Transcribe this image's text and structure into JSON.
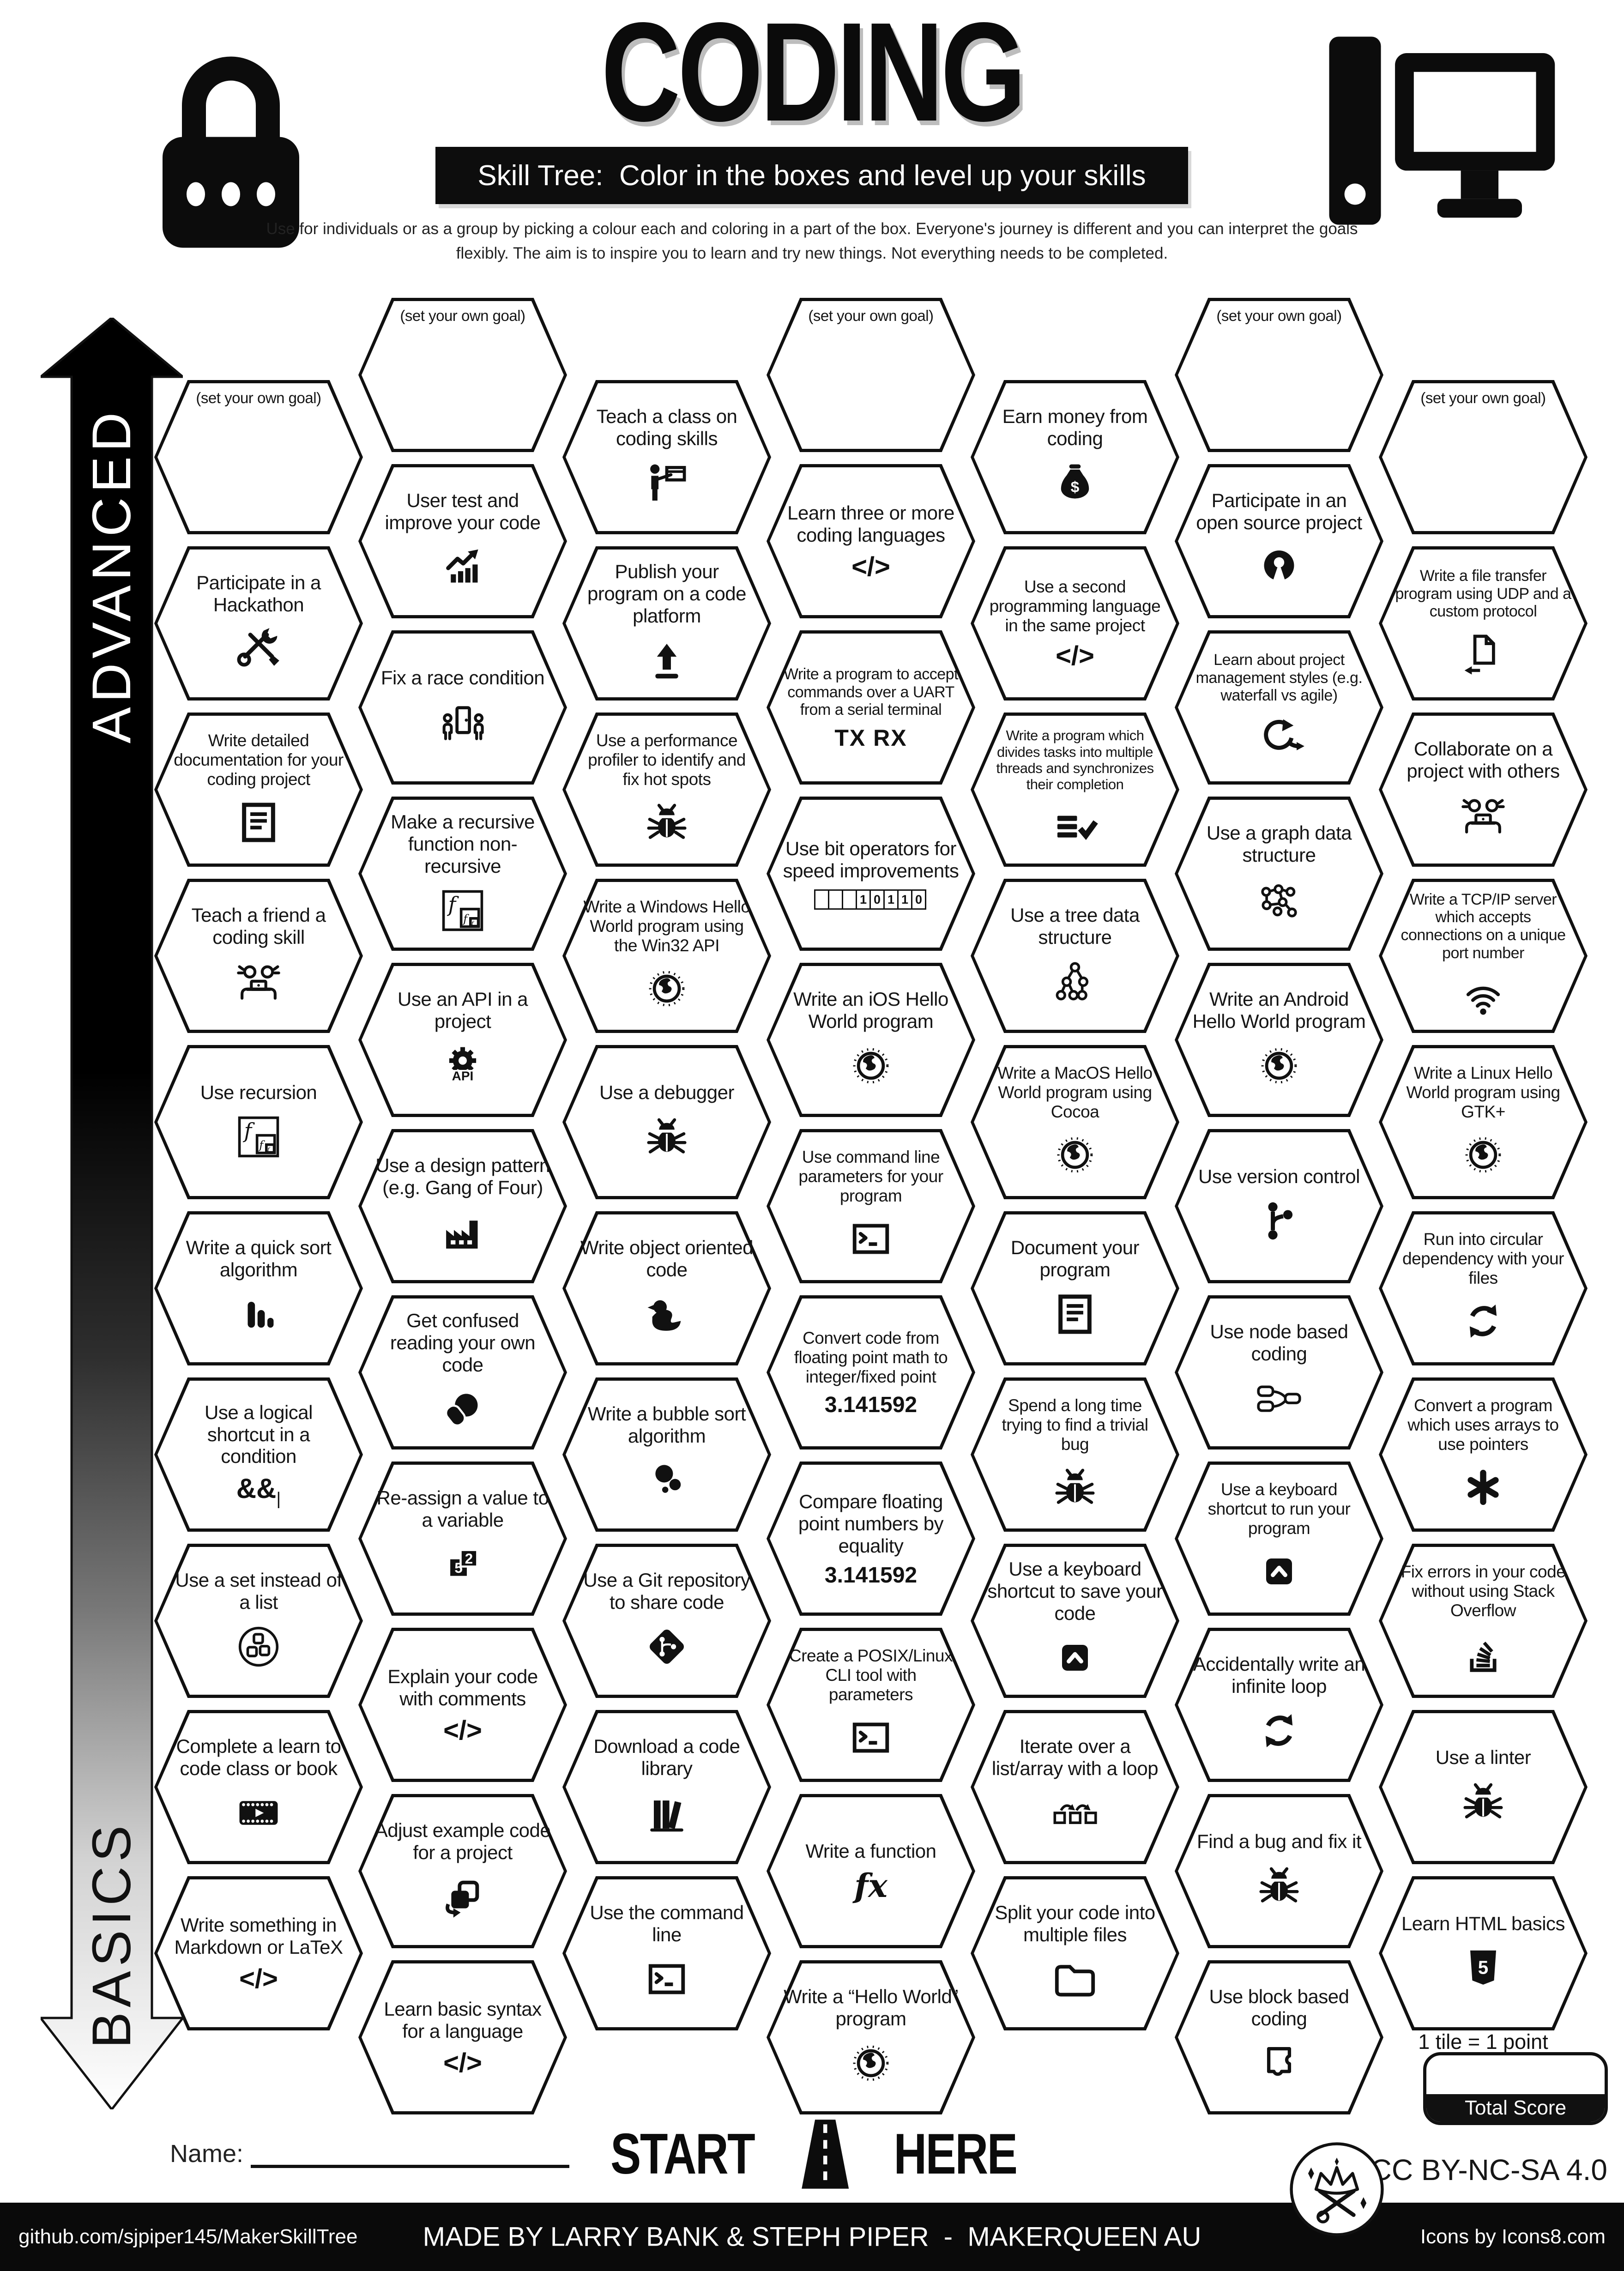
{
  "header": {
    "title": "CODING",
    "subtitle": "Skill Tree:  Color in the boxes and level up your skills",
    "description": "Use for individuals or as a group by picking a colour each and coloring in a part of the box.  Everyone's journey is different and you can interpret the goals flexibly.  The aim is to inspire you to learn and try new things. Not everything needs to be completed."
  },
  "difficulty_axis": {
    "top_label": "ADVANCED",
    "bottom_label": "BASICS"
  },
  "skill_columns": [
    {
      "hexes": [
        {
          "label": "(set your own goal)",
          "icon": null
        },
        {
          "label": "Participate in a Hackathon",
          "icon": "crossed-tools-icon"
        },
        {
          "label": "Write detailed documentation for your coding project",
          "icon": "document-icon"
        },
        {
          "label": "Teach a friend a coding skill",
          "icon": "pair-programming-icon"
        },
        {
          "label": "Use recursion",
          "icon": "recursion-icon"
        },
        {
          "label": "Write a quick sort algorithm",
          "icon": "sort-bars-icon"
        },
        {
          "label": "Use a logical shortcut in a condition",
          "icon": "logic-and-icon"
        },
        {
          "label": "Use a set instead of a list",
          "icon": "set-circle-icon"
        },
        {
          "label": "Complete a learn to code class or book",
          "icon": "film-icon"
        },
        {
          "label": "Write something in Markdown or LaTeX",
          "icon": "code-brackets-icon"
        }
      ]
    },
    {
      "hexes": [
        {
          "label": "(set your own goal)",
          "icon": null
        },
        {
          "label": "User test and improve your code",
          "icon": "growth-chart-icon"
        },
        {
          "label": "Fix a race condition",
          "icon": "race-condition-icon"
        },
        {
          "label": "Make a recursive function non-recursive",
          "icon": "recursion-icon"
        },
        {
          "label": "Use an API in a project",
          "icon": "api-gear-icon"
        },
        {
          "label": "Use a design pattern (e.g. Gang of Four)",
          "icon": "factory-icon"
        },
        {
          "label": "Get confused reading your own code",
          "icon": "facepalm-icon"
        },
        {
          "label": "Re-assign a value to a variable",
          "icon": "reassign-value-icon"
        },
        {
          "label": "Explain your code with comments",
          "icon": "code-brackets-icon"
        },
        {
          "label": "Adjust example code for a project",
          "icon": "copy-code-icon"
        },
        {
          "label": "Learn basic syntax for a language",
          "icon": "code-brackets-icon"
        }
      ]
    },
    {
      "hexes": [
        {
          "label": "Teach a class on coding skills",
          "icon": "teacher-board-icon"
        },
        {
          "label": "Publish your program on a code platform",
          "icon": "upload-icon"
        },
        {
          "label": "Use a performance profiler to identify and fix hot spots",
          "icon": "bug-icon"
        },
        {
          "label": "Write a Windows Hello World program using the Win32 API",
          "icon": "globe-icon"
        },
        {
          "label": "Use a debugger",
          "icon": "bug-icon"
        },
        {
          "label": "Write object oriented code",
          "icon": "rubber-duck-icon"
        },
        {
          "label": "Write a bubble sort algorithm",
          "icon": "bubbles-icon"
        },
        {
          "label": "Use a Git repository to share code",
          "icon": "git-diamond-icon"
        },
        {
          "label": "Download a code library",
          "icon": "library-books-icon"
        },
        {
          "label": "Use the command line",
          "icon": "terminal-icon"
        }
      ]
    },
    {
      "hexes": [
        {
          "label": "(set your own goal)",
          "icon": null
        },
        {
          "label": "Learn three or more coding languages",
          "icon": "code-brackets-icon"
        },
        {
          "label": "Write a program to accept commands over a UART from a serial terminal",
          "icon": "tx-rx-icon"
        },
        {
          "label": "Use bit operators for speed improvements",
          "icon": "binary-bits-icon"
        },
        {
          "label": "Write an iOS Hello World program",
          "icon": "globe-icon"
        },
        {
          "label": "Use command line parameters for your program",
          "icon": "terminal-icon"
        },
        {
          "label": "Convert code from floating point math to integer/fixed point",
          "icon": "pi-number-icon"
        },
        {
          "label": "Compare floating point numbers by equality",
          "icon": "pi-number-icon"
        },
        {
          "label": "Create a POSIX/Linux CLI tool with parameters",
          "icon": "terminal-icon"
        },
        {
          "label": "Write a function",
          "icon": "function-fx-icon"
        },
        {
          "label": "Write a “Hello World” program",
          "icon": "globe-icon"
        }
      ]
    },
    {
      "hexes": [
        {
          "label": "Earn money from coding",
          "icon": "money-bag-icon"
        },
        {
          "label": "Use a second programming language in the same project",
          "icon": "code-brackets-icon"
        },
        {
          "label": "Write a program which divides tasks into multiple threads and synchronizes their completion",
          "icon": "threads-check-icon"
        },
        {
          "label": "Use a tree data structure",
          "icon": "tree-structure-icon"
        },
        {
          "label": "Write a MacOS Hello World program using Cocoa",
          "icon": "globe-icon"
        },
        {
          "label": "Document your program",
          "icon": "document-icon"
        },
        {
          "label": "Spend a long time trying to find a trivial bug",
          "icon": "bug-icon"
        },
        {
          "label": "Use a keyboard shortcut to save your code",
          "icon": "keyboard-key-icon"
        },
        {
          "label": "Iterate over a list/array with a loop",
          "icon": "loop-squares-icon"
        },
        {
          "label": "Split your code into multiple files",
          "icon": "folder-icon"
        }
      ]
    },
    {
      "hexes": [
        {
          "label": "(set your own goal)",
          "icon": null
        },
        {
          "label": "Participate in an open source project",
          "icon": "open-source-icon"
        },
        {
          "label": "Learn about project management styles (e.g. waterfall vs agile)",
          "icon": "agile-cycle-icon"
        },
        {
          "label": "Use a graph data structure",
          "icon": "graph-structure-icon"
        },
        {
          "label": "Write an Android Hello World program",
          "icon": "globe-icon"
        },
        {
          "label": "Use version control",
          "icon": "git-branch-icon"
        },
        {
          "label": "Use node based coding",
          "icon": "node-graph-icon"
        },
        {
          "label": "Use a keyboard shortcut to run your program",
          "icon": "keyboard-key-icon"
        },
        {
          "label": "Accidentally write an infinite loop",
          "icon": "sync-arrows-icon"
        },
        {
          "label": "Find a bug and fix it",
          "icon": "bug-icon"
        },
        {
          "label": "Use block based coding",
          "icon": "block-coding-icon"
        }
      ]
    },
    {
      "hexes": [
        {
          "label": "(set your own goal)",
          "icon": null
        },
        {
          "label": "Write a file transfer program using UDP and a custom protocol",
          "icon": "file-transfer-icon"
        },
        {
          "label": "Collaborate on a project with others",
          "icon": "pair-programming-icon"
        },
        {
          "label": "Write a TCP/IP server which accepts connections on a unique port number",
          "icon": "wifi-icon"
        },
        {
          "label": "Write a Linux Hello World program using GTK+",
          "icon": "globe-icon"
        },
        {
          "label": "Run into circular dependency with your files",
          "icon": "sync-arrows-icon"
        },
        {
          "label": "Convert a program which uses arrays to use pointers",
          "icon": "asterisk-icon"
        },
        {
          "label": "Fix errors in your code without using Stack Overflow",
          "icon": "stack-overflow-icon"
        },
        {
          "label": "Use a linter",
          "icon": "bug-icon"
        },
        {
          "label": "Learn HTML basics",
          "icon": "html5-icon"
        }
      ]
    }
  ],
  "start_marker": {
    "start": "START",
    "here": "HERE"
  },
  "name_field": {
    "label": "Name:"
  },
  "scoring": {
    "tile_note": "1 tile = 1 point",
    "total_score_label": "Total Score"
  },
  "license": {
    "text": "CC BY-NC-SA 4.0"
  },
  "footer": {
    "left": "github.com/sjpiper145/MakerSkillTree",
    "center": "MADE BY LARRY BANK & STEPH PIPER  -  MAKERQUEEN AU",
    "right": "Icons by Icons8.com"
  }
}
